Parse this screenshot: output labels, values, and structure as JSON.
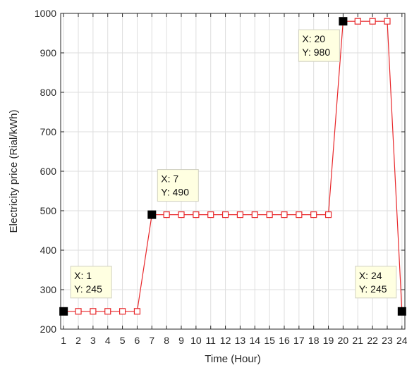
{
  "chart_data": {
    "type": "line",
    "title": "",
    "xlabel": "Time (Hour)",
    "ylabel": "Electricity price (Rial/kWh)",
    "xlim": [
      0.8,
      24.2
    ],
    "ylim": [
      200,
      1000
    ],
    "x_ticks": [
      1,
      2,
      3,
      4,
      5,
      6,
      7,
      8,
      9,
      10,
      11,
      12,
      13,
      14,
      15,
      16,
      17,
      18,
      19,
      20,
      21,
      22,
      23,
      24
    ],
    "y_ticks": [
      200,
      300,
      400,
      500,
      600,
      700,
      800,
      900,
      1000
    ],
    "grid": true,
    "x": [
      1,
      2,
      3,
      4,
      5,
      6,
      7,
      8,
      9,
      10,
      11,
      12,
      13,
      14,
      15,
      16,
      17,
      18,
      19,
      20,
      21,
      22,
      23,
      24
    ],
    "series": [
      {
        "name": "",
        "color": "#e8272a",
        "marker": "square-open",
        "values": [
          245,
          245,
          245,
          245,
          245,
          245,
          490,
          490,
          490,
          490,
          490,
          490,
          490,
          490,
          490,
          490,
          490,
          490,
          490,
          980,
          980,
          980,
          980,
          245
        ]
      }
    ],
    "datatips": [
      {
        "x": 1,
        "y": 245,
        "x_text": "X: 1",
        "y_text": "Y: 245"
      },
      {
        "x": 7,
        "y": 490,
        "x_text": "X: 7",
        "y_text": "Y: 490"
      },
      {
        "x": 20,
        "y": 980,
        "x_text": "X: 20",
        "y_text": "Y: 980"
      },
      {
        "x": 24,
        "y": 245,
        "x_text": "X: 24",
        "y_text": "Y: 245"
      }
    ]
  }
}
